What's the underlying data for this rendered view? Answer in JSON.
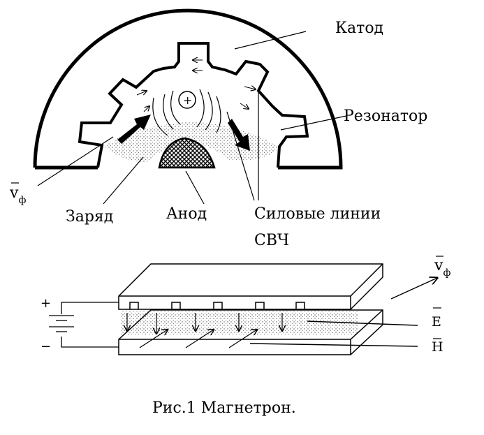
{
  "figure": {
    "labels": {
      "cathode": "Катод",
      "resonator": "Резонатор",
      "phase_velocity_symbol": "v",
      "phase_velocity_subscript": "ф",
      "charge": "Заряд",
      "anode": "Анод",
      "field_lines_line1": "Силовые линии",
      "field_lines_line2": "СВЧ",
      "e_field": "E",
      "h_field": "H",
      "plus_sign": "+",
      "minus_sign": "−",
      "positive_charge": "+"
    },
    "caption": "Рис.1 Магнетрон."
  }
}
